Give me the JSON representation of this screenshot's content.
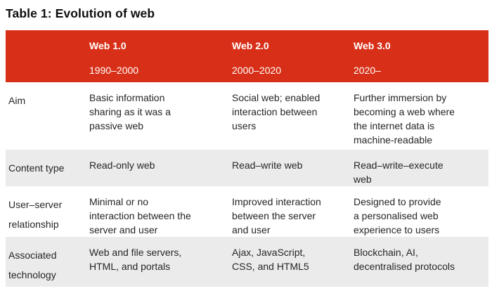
{
  "caption": "Table 1: Evolution of web",
  "colors": {
    "header_bg": "#D83018",
    "header_text": "#FFFFFF",
    "alt_row_bg": "#EBEBEB",
    "body_text": "#262626",
    "title_text": "#0E0E0E"
  },
  "table": {
    "header": {
      "corner_label": "",
      "columns": [
        {
          "name": "Web 1.0",
          "period": "1990–2000"
        },
        {
          "name": "Web 2.0",
          "period": "2000–2020"
        },
        {
          "name": "Web 3.0",
          "period": "2020–"
        }
      ]
    },
    "rows": [
      {
        "label": "Aim",
        "cells": [
          "Basic information\nsharing as it was a\npassive web",
          "Social web; enabled\ninteraction between\nusers",
          "Further immersion by\nbecoming a web where\nthe internet data is\nmachine-readable"
        ]
      },
      {
        "label": "Content type",
        "cells": [
          "Read-only web",
          "Read–write web",
          "Read–write–execute\nweb"
        ]
      },
      {
        "label": "User–server\nrelationship",
        "cells": [
          "Minimal or no\ninteraction between the\nserver and user",
          "Improved interaction\nbetween the server\nand user",
          "Designed to provide\na personalised web\nexperience to users"
        ]
      },
      {
        "label": "Associated\ntechnology",
        "cells": [
          "Web and file servers,\nHTML, and portals",
          "Ajax, JavaScript,\nCSS, and HTML5",
          "Blockchain, AI,\ndecentralised protocols"
        ]
      }
    ]
  }
}
